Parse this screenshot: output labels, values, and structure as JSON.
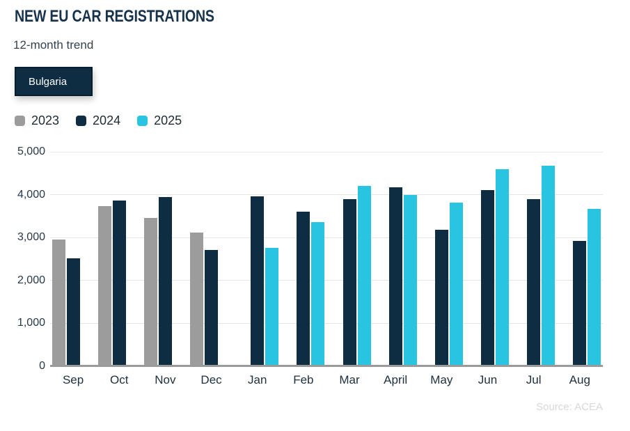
{
  "header": {
    "title": "NEW EU CAR REGISTRATIONS",
    "subtitle": "12-month trend"
  },
  "filter": {
    "country": "Bulgaria"
  },
  "legend": {
    "items": [
      {
        "label": "2023",
        "color": "#9c9c9c"
      },
      {
        "label": "2024",
        "color": "#0e2c42"
      },
      {
        "label": "2025",
        "color": "#29c4e0"
      }
    ]
  },
  "source": {
    "label": "Source: ACEA"
  },
  "colors": {
    "title": "#16334b",
    "badge_bg": "#0e2c42",
    "gridline": "#e5e5e5",
    "axis_line": "#9a9a9a"
  },
  "chart_data": {
    "type": "bar",
    "title": "NEW EU CAR REGISTRATIONS",
    "subtitle": "12-month trend",
    "region": "Bulgaria",
    "categories": [
      "Sep",
      "Oct",
      "Nov",
      "Dec",
      "Jan",
      "Feb",
      "Mar",
      "April",
      "May",
      "Jun",
      "Jul",
      "Aug"
    ],
    "series": [
      {
        "name": "2023",
        "color": "#9c9c9c",
        "values": [
          2960,
          3740,
          3460,
          3110,
          null,
          null,
          null,
          null,
          null,
          null,
          null,
          null
        ]
      },
      {
        "name": "2024",
        "color": "#0e2c42",
        "values": [
          2520,
          3860,
          3950,
          2710,
          3960,
          3600,
          3900,
          4180,
          3190,
          4100,
          3900,
          2930
        ]
      },
      {
        "name": "2025",
        "color": "#29c4e0",
        "values": [
          null,
          null,
          null,
          null,
          2760,
          3360,
          4210,
          3990,
          3820,
          4600,
          4680,
          3670
        ]
      }
    ],
    "ylim": [
      0,
      5000
    ],
    "y_tick_step": 1000,
    "grid": "horizontal",
    "legend_position": "top-left",
    "source": "Source: ACEA"
  }
}
